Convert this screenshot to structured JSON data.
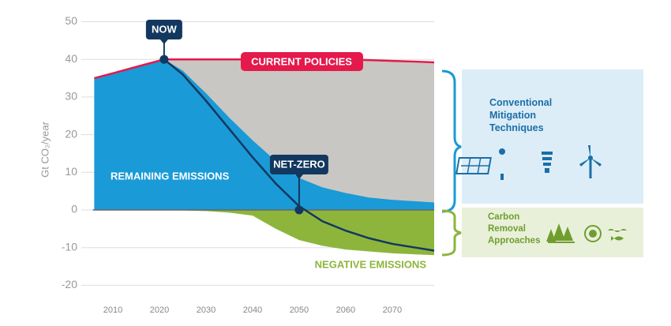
{
  "chart_data": {
    "type": "area",
    "y_label": "Gt CO₂/year",
    "x": [
      2006,
      2010,
      2015,
      2021,
      2025,
      2030,
      2035,
      2040,
      2045,
      2050,
      2055,
      2060,
      2065,
      2070,
      2075,
      2079
    ],
    "series": [
      {
        "name": "CURRENT POLICIES",
        "color": "#e5194b",
        "values": [
          35,
          36.3,
          38,
          40,
          40,
          40,
          40,
          40,
          40,
          40,
          40,
          40,
          39.8,
          39.6,
          39.4,
          39.2
        ]
      },
      {
        "name": "REMAINING EMISSIONS",
        "color": "#1a9ad6",
        "values": [
          35,
          36.3,
          38,
          40,
          37,
          31,
          24.5,
          18.5,
          13,
          8.5,
          6,
          4.5,
          3.3,
          2.7,
          2.3,
          2
        ]
      },
      {
        "name": "NEGATIVE EMISSIONS",
        "color": "#8db53c",
        "values": [
          0,
          0,
          0,
          0,
          -0.1,
          -0.3,
          -0.7,
          -1.5,
          -5,
          -8,
          -9.5,
          -10.5,
          -11,
          -11.5,
          -11.8,
          -12
        ]
      },
      {
        "color": "#13385f",
        "values": [
          null,
          null,
          null,
          40,
          36,
          29,
          21.5,
          14,
          7,
          1,
          -3,
          -5.5,
          -7.5,
          -9,
          -10,
          -10.8
        ]
      }
    ],
    "annotations": [
      {
        "text": "NOW",
        "x": 2021,
        "y": 40
      },
      {
        "text": "NET-ZERO",
        "x": 2050,
        "y": 0
      }
    ],
    "xlim": [
      2004,
      2079
    ],
    "xticks": [
      2010,
      2020,
      2030,
      2040,
      2050,
      2060,
      2070
    ],
    "ylim": [
      -20,
      50
    ],
    "yticks": [
      50,
      40,
      30,
      20,
      10,
      0,
      -10,
      -20
    ],
    "grid": true
  },
  "panels": [
    {
      "title": "Conventional Mitigation Techniques"
    },
    {
      "title": "Carbon Removal Approaches"
    }
  ]
}
